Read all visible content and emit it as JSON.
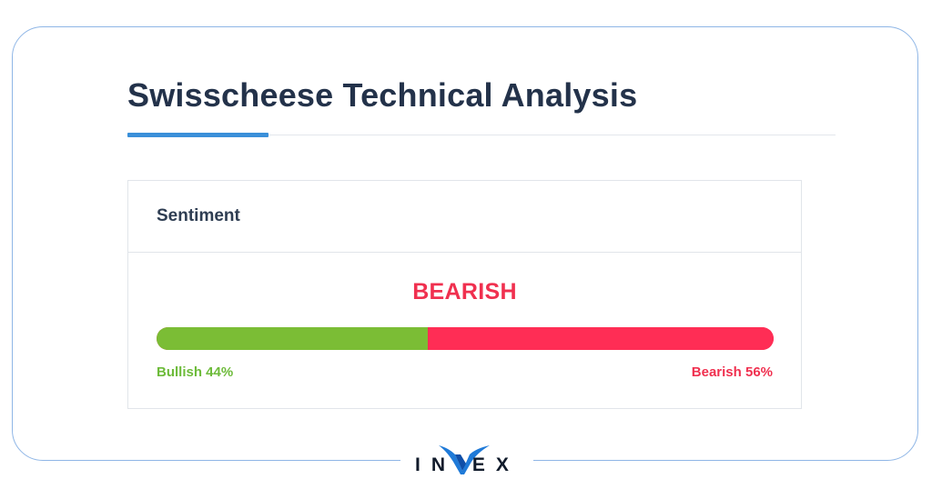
{
  "page": {
    "title": "Swisscheese Technical Analysis"
  },
  "sentiment_card": {
    "header": "Sentiment",
    "verdict": "BEARISH",
    "bullish_fraction": 0.44,
    "bearish_fraction": 0.56,
    "bullish_label": "Bullish 44%",
    "bearish_label": "Bearish 56%"
  },
  "brand": {
    "logo_text": "IN EX",
    "logo_alt": "INVEX"
  },
  "colors": {
    "accent": "#3a8fd9",
    "bullish": "#7bbd35",
    "bearish": "#ff2d55",
    "heading": "#23324a"
  },
  "icons": {
    "logo_mark": "invex-v-logo-icon"
  }
}
